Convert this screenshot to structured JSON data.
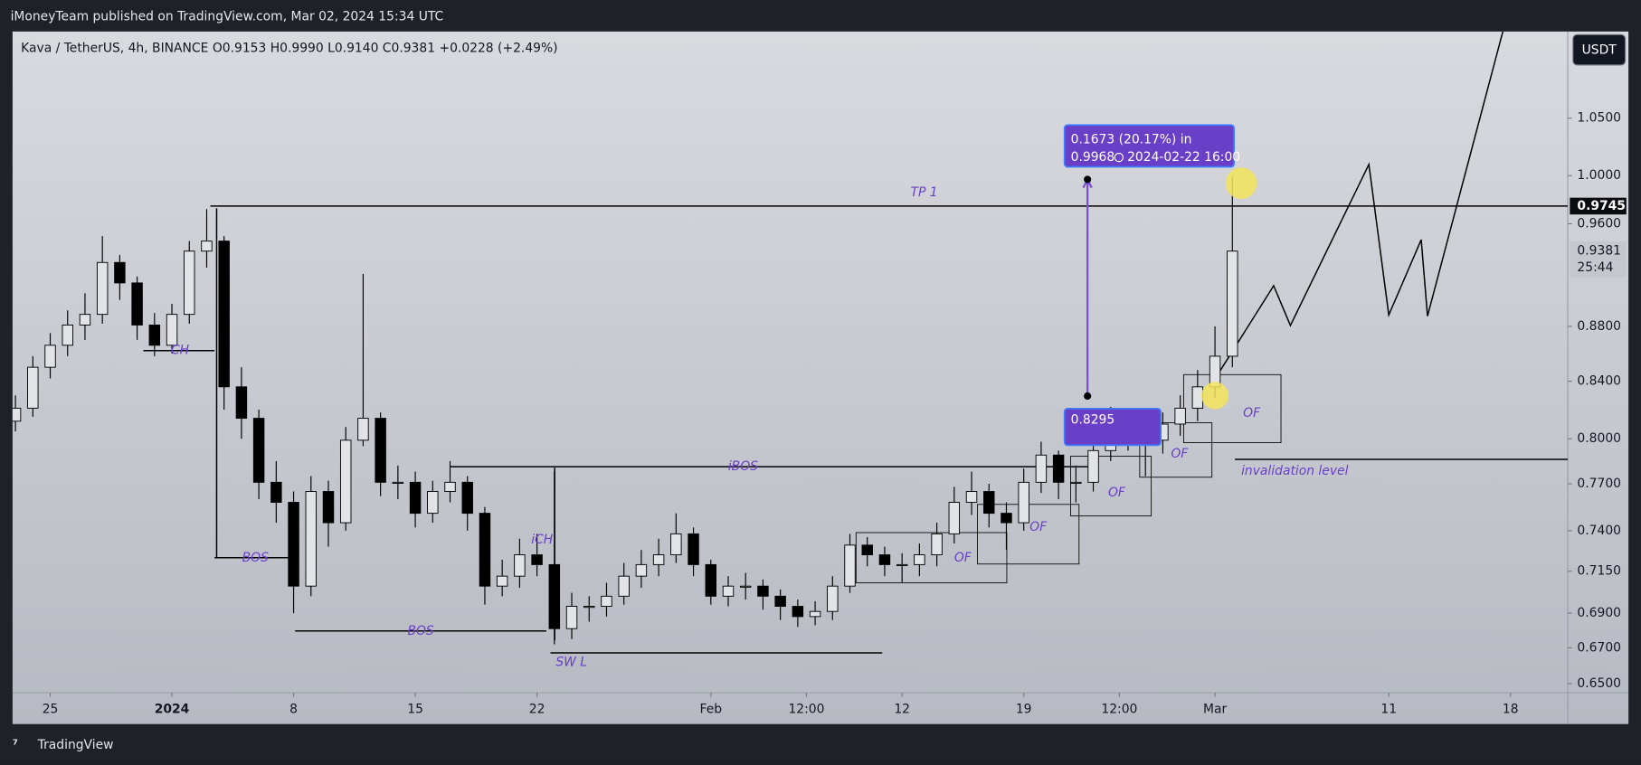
{
  "header": {
    "published": "iMoneyTeam published on TradingView.com, Mar 02, 2024 15:34 UTC",
    "brand": "TradingView"
  },
  "chart_data": {
    "type": "candlestick",
    "symbol": "Kava / TetherUS, 4h, BINANCE",
    "ohlc": "O0.9153 H0.9990 L0.9140 C0.9381 +0.0228 (+2.49%)",
    "currency": "USDT",
    "log_scale": true,
    "grid": false,
    "x": [
      "2023-12-23",
      "2023-12-24",
      "2023-12-25",
      "2023-12-26",
      "2023-12-27",
      "2023-12-28",
      "2023-12-29",
      "2023-12-30",
      "2023-12-31",
      "2024-01-01",
      "2024-01-02",
      "2024-01-03",
      "2024-01-04",
      "2024-01-05",
      "2024-01-06",
      "2024-01-07",
      "2024-01-08",
      "2024-01-09",
      "2024-01-10",
      "2024-01-11",
      "2024-01-12",
      "2024-01-13",
      "2024-01-14",
      "2024-01-15",
      "2024-01-16",
      "2024-01-17",
      "2024-01-18",
      "2024-01-19",
      "2024-01-20",
      "2024-01-21",
      "2024-01-22",
      "2024-01-23",
      "2024-01-24",
      "2024-01-25",
      "2024-01-26",
      "2024-01-27",
      "2024-01-28",
      "2024-01-29",
      "2024-01-30",
      "2024-01-31",
      "2024-02-01",
      "2024-02-02",
      "2024-02-03",
      "2024-02-04",
      "2024-02-05",
      "2024-02-06",
      "2024-02-07",
      "2024-02-08",
      "2024-02-09",
      "2024-02-10",
      "2024-02-11",
      "2024-02-12",
      "2024-02-13",
      "2024-02-14",
      "2024-02-15",
      "2024-02-16",
      "2024-02-17",
      "2024-02-18",
      "2024-02-19",
      "2024-02-20",
      "2024-02-21",
      "2024-02-22",
      "2024-02-23",
      "2024-02-24",
      "2024-02-25",
      "2024-02-26",
      "2024-02-27",
      "2024-02-28",
      "2024-02-29",
      "2024-03-01",
      "2024-03-02"
    ],
    "open": [
      0.812,
      0.821,
      0.85,
      0.866,
      0.881,
      0.889,
      0.929,
      0.913,
      0.881,
      0.866,
      0.889,
      0.938,
      0.946,
      0.836,
      0.814,
      0.771,
      0.758,
      0.706,
      0.765,
      0.745,
      0.799,
      0.814,
      0.771,
      0.771,
      0.751,
      0.765,
      0.771,
      0.751,
      0.706,
      0.712,
      0.725,
      0.719,
      0.681,
      0.694,
      0.694,
      0.7,
      0.712,
      0.719,
      0.725,
      0.738,
      0.719,
      0.7,
      0.706,
      0.706,
      0.7,
      0.694,
      0.688,
      0.691,
      0.706,
      0.731,
      0.725,
      0.719,
      0.719,
      0.725,
      0.738,
      0.758,
      0.765,
      0.751,
      0.745,
      0.771,
      0.789,
      0.771,
      0.771,
      0.792,
      0.799,
      0.806,
      0.799,
      0.81,
      0.821,
      0.836,
      0.858
    ],
    "high": [
      0.83,
      0.858,
      0.875,
      0.892,
      0.905,
      0.95,
      0.935,
      0.918,
      0.89,
      0.897,
      0.946,
      0.972,
      0.95,
      0.85,
      0.82,
      0.785,
      0.765,
      0.775,
      0.772,
      0.808,
      0.92,
      0.818,
      0.782,
      0.778,
      0.772,
      0.785,
      0.775,
      0.755,
      0.722,
      0.735,
      0.738,
      0.778,
      0.702,
      0.7,
      0.708,
      0.72,
      0.728,
      0.735,
      0.751,
      0.742,
      0.722,
      0.712,
      0.714,
      0.71,
      0.704,
      0.698,
      0.697,
      0.712,
      0.738,
      0.736,
      0.73,
      0.726,
      0.732,
      0.745,
      0.768,
      0.778,
      0.77,
      0.758,
      0.78,
      0.798,
      0.792,
      0.782,
      0.8,
      0.822,
      0.815,
      0.812,
      0.818,
      0.83,
      0.848,
      0.88,
      0.999
    ],
    "low": [
      0.805,
      0.815,
      0.842,
      0.858,
      0.87,
      0.882,
      0.9,
      0.87,
      0.858,
      0.86,
      0.882,
      0.925,
      0.82,
      0.8,
      0.76,
      0.745,
      0.69,
      0.7,
      0.73,
      0.74,
      0.795,
      0.762,
      0.76,
      0.742,
      0.745,
      0.758,
      0.74,
      0.695,
      0.7,
      0.705,
      0.712,
      0.672,
      0.675,
      0.685,
      0.688,
      0.695,
      0.705,
      0.712,
      0.72,
      0.712,
      0.695,
      0.694,
      0.698,
      0.692,
      0.686,
      0.682,
      0.683,
      0.686,
      0.702,
      0.718,
      0.712,
      0.708,
      0.712,
      0.718,
      0.732,
      0.75,
      0.742,
      0.728,
      0.74,
      0.764,
      0.76,
      0.758,
      0.765,
      0.785,
      0.792,
      0.775,
      0.79,
      0.802,
      0.812,
      0.828,
      0.85
    ],
    "close": [
      0.821,
      0.85,
      0.866,
      0.881,
      0.889,
      0.929,
      0.913,
      0.881,
      0.866,
      0.889,
      0.938,
      0.946,
      0.836,
      0.814,
      0.771,
      0.758,
      0.706,
      0.765,
      0.745,
      0.799,
      0.814,
      0.771,
      0.771,
      0.751,
      0.765,
      0.771,
      0.751,
      0.706,
      0.712,
      0.725,
      0.719,
      0.681,
      0.694,
      0.694,
      0.7,
      0.712,
      0.719,
      0.725,
      0.738,
      0.719,
      0.7,
      0.706,
      0.706,
      0.7,
      0.694,
      0.688,
      0.691,
      0.706,
      0.731,
      0.725,
      0.719,
      0.719,
      0.725,
      0.738,
      0.758,
      0.765,
      0.751,
      0.745,
      0.771,
      0.789,
      0.771,
      0.771,
      0.792,
      0.799,
      0.806,
      0.799,
      0.81,
      0.821,
      0.836,
      0.858,
      0.938
    ],
    "xlim": [
      "2023-12-22T20:00",
      "2024-03-21T07:00"
    ],
    "xticks": [
      {
        "value": "2023-12-25",
        "label": "25"
      },
      {
        "value": "2024-01-01",
        "label": "2024"
      },
      {
        "value": "2024-01-08",
        "label": "8"
      },
      {
        "value": "2024-01-15",
        "label": "15"
      },
      {
        "value": "2024-01-22",
        "label": "22"
      },
      {
        "value": "2024-02-01",
        "label": "Feb"
      },
      {
        "value": "2024-02-06T12:00",
        "label": "12:00"
      },
      {
        "value": "2024-02-12",
        "label": "12"
      },
      {
        "value": "2024-02-19",
        "label": "19"
      },
      {
        "value": "2024-02-24T12:00",
        "label": "12:00"
      },
      {
        "value": "2024-03-01",
        "label": "Mar"
      },
      {
        "value": "2024-03-11",
        "label": "11"
      },
      {
        "value": "2024-03-18",
        "label": "18"
      }
    ],
    "ylim": [
      0.645,
      1.13
    ],
    "yticks": [
      {
        "value": 0.65,
        "label": "0.6500"
      },
      {
        "value": 0.67,
        "label": "0.6700"
      },
      {
        "value": 0.69,
        "label": "0.6900"
      },
      {
        "value": 0.715,
        "label": "0.7150"
      },
      {
        "value": 0.74,
        "label": "0.7400"
      },
      {
        "value": 0.77,
        "label": "0.7700"
      },
      {
        "value": 0.8,
        "label": "0.8000"
      },
      {
        "value": 0.84,
        "label": "0.8400"
      },
      {
        "value": 0.88,
        "label": "0.8800"
      },
      {
        "value": 0.96,
        "label": "0.9600"
      },
      {
        "value": 1.0,
        "label": "1.0000"
      },
      {
        "value": 1.05,
        "label": "1.0500"
      }
    ],
    "level": 0.9745,
    "last_price": 0.9381,
    "countdown": "25:44",
    "measure": {
      "change": "0.1673 (20.17%) in",
      "high_price": 0.9968,
      "high_time": "2024-02-22  16:00",
      "low_price": 0.8295
    },
    "annotations": [
      "TP 1",
      "CH",
      "BOS",
      "BOS",
      "iBOS",
      "iCH",
      "SW L",
      "OF",
      "OF",
      "OF",
      "OF",
      "OF",
      "invalidation level"
    ]
  }
}
